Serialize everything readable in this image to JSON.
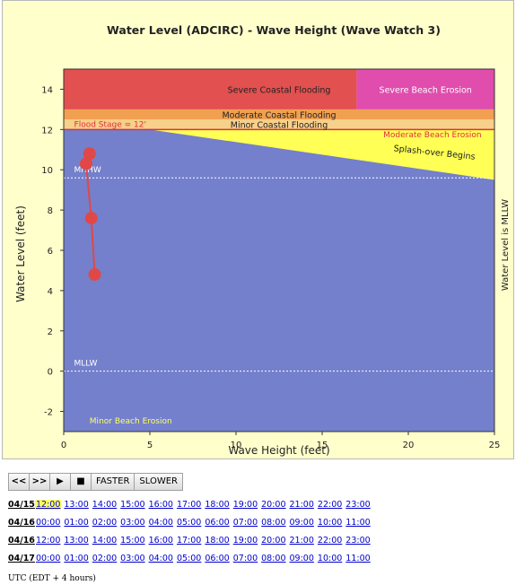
{
  "chart_data": {
    "type": "area",
    "title": "Water Level (ADCIRC) - Wave Height (Wave Watch 3)",
    "xlabel": "Wave Height (feet)",
    "ylabel": "Water Level (feet)",
    "right_label": "Water Level is MLLW",
    "xlim": [
      0,
      25
    ],
    "ylim": [
      -3,
      15
    ],
    "xticks": [
      0,
      5,
      10,
      15,
      20,
      25
    ],
    "yticks": [
      -2,
      0,
      2,
      4,
      6,
      8,
      10,
      12,
      14
    ],
    "zones": {
      "severe_coastal_flooding": {
        "label": "Severe Coastal Flooding",
        "ymin": 13,
        "ymax": 15,
        "xmin": 0,
        "xmax": 17,
        "color": "#e25050"
      },
      "severe_beach_erosion": {
        "label": "Severe Beach Erosion",
        "ymin": 13,
        "ymax": 15,
        "xmin": 17,
        "xmax": 25,
        "color": "#e04dad"
      },
      "moderate_coastal_flooding": {
        "label": "Moderate Coastal Flooding",
        "ymin": 12.5,
        "ymax": 13,
        "color": "#f0a050"
      },
      "minor_coastal_flooding": {
        "label": "Minor Coastal Flooding",
        "ymin": 12,
        "ymax": 12.5,
        "color": "#f7d08a"
      },
      "moderate_beach_erosion": {
        "label": "Moderate Beach Erosion",
        "color": "#ffff55"
      },
      "splash_over": {
        "label": "Splash-over Begins"
      },
      "minor_beach_erosion": {
        "label": "Minor Beach Erosion",
        "color": "#7480cc"
      }
    },
    "erosion_boundary": [
      [
        0,
        12
      ],
      [
        5,
        12
      ],
      [
        25,
        9.5
      ]
    ],
    "flood_stage": {
      "label": "Flood Stage = 12'",
      "value": 12,
      "color": "#e0303c"
    },
    "reference_lines": [
      {
        "label": "MHHW",
        "value": 9.6
      },
      {
        "label": "MLLW",
        "value": 0
      }
    ],
    "series": [
      {
        "points": [
          [
            1.5,
            10.8
          ],
          [
            1.3,
            10.3
          ],
          [
            1.6,
            7.6
          ],
          [
            1.8,
            4.8
          ]
        ],
        "color": "#e04848"
      }
    ]
  },
  "controls": {
    "rewind": "<<",
    "forward": ">>",
    "play": "▶",
    "stop": "■",
    "faster": "FASTER",
    "slower": "SLOWER"
  },
  "time_rows": [
    {
      "date": "04/15",
      "times": [
        "12:00",
        "13:00",
        "14:00",
        "15:00",
        "16:00",
        "17:00",
        "18:00",
        "19:00",
        "20:00",
        "21:00",
        "22:00",
        "23:00"
      ],
      "active": 0
    },
    {
      "date": "04/16",
      "times": [
        "00:00",
        "01:00",
        "02:00",
        "03:00",
        "04:00",
        "05:00",
        "06:00",
        "07:00",
        "08:00",
        "09:00",
        "10:00",
        "11:00"
      ],
      "active": -1
    },
    {
      "date": "04/16",
      "times": [
        "12:00",
        "13:00",
        "14:00",
        "15:00",
        "16:00",
        "17:00",
        "18:00",
        "19:00",
        "20:00",
        "21:00",
        "22:00",
        "23:00"
      ],
      "active": -1
    },
    {
      "date": "04/17",
      "times": [
        "00:00",
        "01:00",
        "02:00",
        "03:00",
        "04:00",
        "05:00",
        "06:00",
        "07:00",
        "08:00",
        "09:00",
        "10:00",
        "11:00"
      ],
      "active": -1
    }
  ],
  "footer": {
    "utc_note": "UTC (EDT + 4 hours)"
  }
}
